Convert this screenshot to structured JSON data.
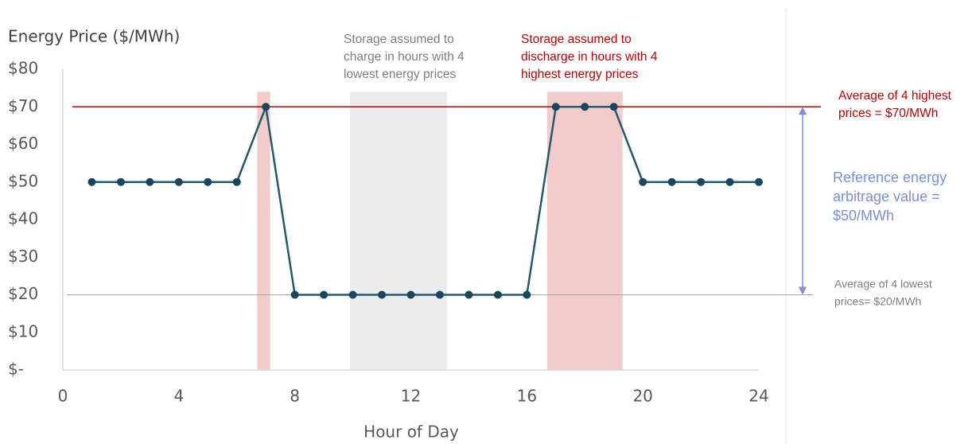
{
  "chart_data": {
    "type": "line",
    "y_axis_label": "Energy Price ($/MWh)",
    "x_axis_label": "Hour of Day",
    "x": [
      1,
      2,
      3,
      4,
      5,
      6,
      7,
      8,
      9,
      10,
      11,
      12,
      13,
      14,
      15,
      16,
      17,
      18,
      19,
      20,
      21,
      22,
      23,
      24
    ],
    "series": [
      {
        "name": "Energy price",
        "color": "#215a72",
        "values": [
          50,
          50,
          50,
          50,
          50,
          50,
          70,
          20,
          20,
          20,
          20,
          20,
          20,
          20,
          20,
          20,
          70,
          70,
          70,
          50,
          50,
          50,
          50,
          50
        ]
      }
    ],
    "xlim": [
      0,
      24
    ],
    "xticks": [
      0,
      4,
      8,
      12,
      16,
      20,
      24
    ],
    "ylim": [
      0,
      80
    ],
    "yticks": [
      {
        "value": 0,
        "label": "$-"
      },
      {
        "value": 10,
        "label": "$10"
      },
      {
        "value": 20,
        "label": "$20"
      },
      {
        "value": 30,
        "label": "$30"
      },
      {
        "value": 40,
        "label": "$40"
      },
      {
        "value": 50,
        "label": "$50"
      },
      {
        "value": 60,
        "label": "$60"
      },
      {
        "value": 70,
        "label": "$70"
      },
      {
        "value": 80,
        "label": "$80"
      }
    ],
    "highlights": [
      {
        "x0": 6.7,
        "x1": 7.15,
        "y1": 74,
        "color": "#f2cbcb"
      },
      {
        "x0": 9.9,
        "x1": 13.25,
        "y1": 74,
        "color": "#ececec"
      },
      {
        "x0": 16.7,
        "x1": 19.3,
        "y1": 74,
        "color": "#f2cbcb"
      }
    ],
    "reference_lines": [
      {
        "value": 70,
        "color": "#c00000"
      },
      {
        "value": 20,
        "color": "#a6a6a6"
      }
    ],
    "arbitrage_arrow": {
      "from": 20,
      "to": 70,
      "color": "#7b8ee0"
    },
    "annotations": [
      {
        "lines": [
          "Storage assumed to",
          "charge in hours with 4",
          "lowest energy prices"
        ],
        "color": "#7f7f7f"
      },
      {
        "lines": [
          "Storage assumed to",
          "discharge in hours with 4",
          "highest energy prices"
        ],
        "color": "#c00000"
      },
      {
        "lines": [
          "Average of 4 highest",
          "prices = $70/MWh"
        ],
        "color": "#c00000"
      },
      {
        "lines": [
          "Reference energy",
          "arbitrage value =",
          "$50/MWh"
        ],
        "color": "#7b8ee0"
      },
      {
        "lines": [
          "Average of 4 lowest",
          "prices= $20/MWh"
        ],
        "color": "#7f7f7f"
      }
    ]
  }
}
